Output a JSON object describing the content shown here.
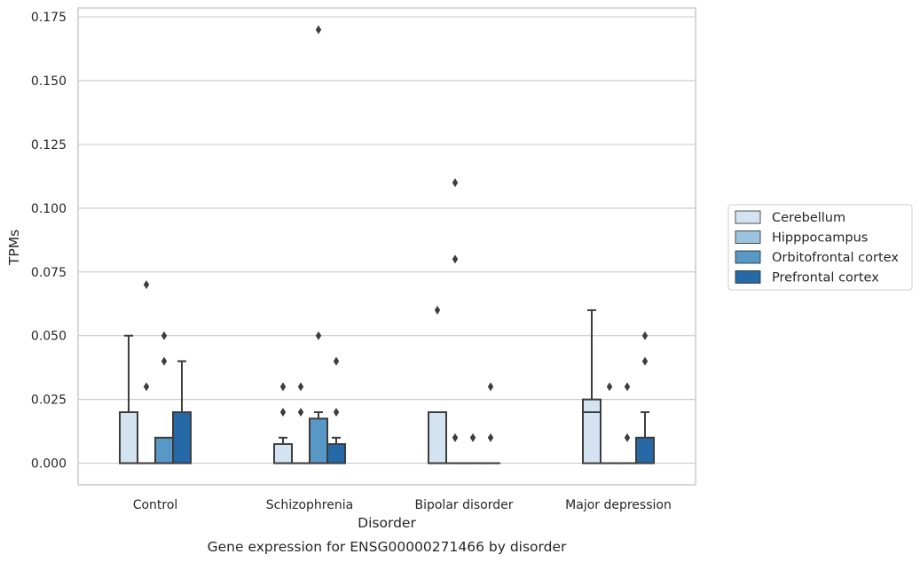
{
  "chart_data": {
    "type": "box",
    "title": "Gene expression for ENSG00000271466 by disorder",
    "xlabel": "Disorder",
    "ylabel": "TPMs",
    "ylim": [
      -0.0085,
      0.1785
    ],
    "yticks": [
      "0.000",
      "0.025",
      "0.050",
      "0.075",
      "0.100",
      "0.125",
      "0.150",
      "0.175"
    ],
    "categories": [
      "Control",
      "Schizophrenia",
      "Bipolar disorder",
      "Major depression"
    ],
    "grid": "horizontal",
    "legend_position": "right",
    "series": [
      {
        "name": "Cerebellum",
        "color": "#d4e3f1",
        "boxes": [
          {
            "q1": 0.0,
            "median": 0.0,
            "q3": 0.02,
            "whisker_low": 0.0,
            "whisker_high": 0.05,
            "outliers": []
          },
          {
            "q1": 0.0,
            "median": 0.0,
            "q3": 0.0075,
            "whisker_low": 0.0,
            "whisker_high": 0.01,
            "outliers": [
              0.02,
              0.03
            ]
          },
          {
            "q1": 0.0,
            "median": 0.0,
            "q3": 0.02,
            "whisker_low": 0.0,
            "whisker_high": 0.02,
            "outliers": [
              0.06
            ]
          },
          {
            "q1": 0.0,
            "median": 0.02,
            "q3": 0.025,
            "whisker_low": 0.0,
            "whisker_high": 0.06,
            "outliers": []
          }
        ]
      },
      {
        "name": "Hipppocampus",
        "color": "#9bc3dd",
        "boxes": [
          {
            "q1": 0.0,
            "median": 0.0,
            "q3": 0.0,
            "whisker_low": 0.0,
            "whisker_high": 0.0,
            "outliers": [
              0.03,
              0.07
            ]
          },
          {
            "q1": 0.0,
            "median": 0.0,
            "q3": 0.0,
            "whisker_low": 0.0,
            "whisker_high": 0.0,
            "outliers": [
              0.02,
              0.03
            ]
          },
          {
            "q1": 0.0,
            "median": 0.0,
            "q3": 0.0,
            "whisker_low": 0.0,
            "whisker_high": 0.0,
            "outliers": [
              0.01,
              0.08,
              0.11
            ]
          },
          {
            "q1": 0.0,
            "median": 0.0,
            "q3": 0.0,
            "whisker_low": 0.0,
            "whisker_high": 0.0,
            "outliers": [
              0.03
            ]
          }
        ]
      },
      {
        "name": "Orbitofrontal cortex",
        "color": "#5898c6",
        "boxes": [
          {
            "q1": 0.0,
            "median": 0.0,
            "q3": 0.01,
            "whisker_low": 0.0,
            "whisker_high": 0.01,
            "outliers": [
              0.04,
              0.05
            ]
          },
          {
            "q1": 0.0,
            "median": 0.0,
            "q3": 0.0175,
            "whisker_low": 0.0,
            "whisker_high": 0.02,
            "outliers": [
              0.05,
              0.17
            ]
          },
          {
            "q1": 0.0,
            "median": 0.0,
            "q3": 0.0,
            "whisker_low": 0.0,
            "whisker_high": 0.0,
            "outliers": [
              0.01
            ]
          },
          {
            "q1": 0.0,
            "median": 0.0,
            "q3": 0.0,
            "whisker_low": 0.0,
            "whisker_high": 0.0,
            "outliers": [
              0.01,
              0.03
            ]
          }
        ]
      },
      {
        "name": "Prefrontal cortex",
        "color": "#2669a7",
        "boxes": [
          {
            "q1": 0.0,
            "median": 0.0,
            "q3": 0.02,
            "whisker_low": 0.0,
            "whisker_high": 0.04,
            "outliers": []
          },
          {
            "q1": 0.0,
            "median": 0.0,
            "q3": 0.0075,
            "whisker_low": 0.0,
            "whisker_high": 0.01,
            "outliers": [
              0.02,
              0.04
            ]
          },
          {
            "q1": 0.0,
            "median": 0.0,
            "q3": 0.0,
            "whisker_low": 0.0,
            "whisker_high": 0.0,
            "outliers": [
              0.01,
              0.03
            ]
          },
          {
            "q1": 0.0,
            "median": 0.0,
            "q3": 0.01,
            "whisker_low": 0.0,
            "whisker_high": 0.02,
            "outliers": [
              0.04,
              0.05
            ]
          }
        ]
      }
    ]
  }
}
